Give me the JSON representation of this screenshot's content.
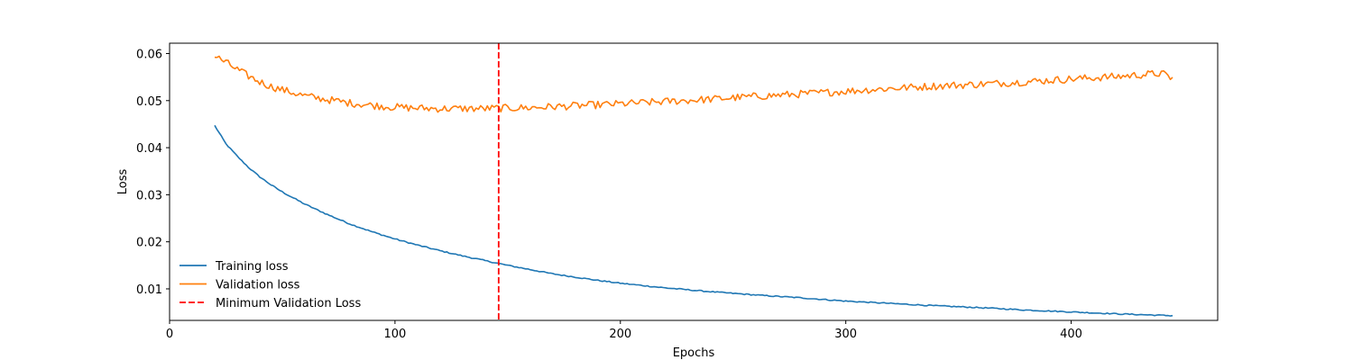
{
  "chart_data": {
    "type": "line",
    "xlabel": "Epochs",
    "ylabel": "Loss",
    "xlim": [
      0,
      465
    ],
    "ylim": [
      0.0033,
      0.0622
    ],
    "xticks": [
      0,
      100,
      200,
      300,
      400
    ],
    "yticks": [
      0.01,
      0.02,
      0.03,
      0.04,
      0.05,
      0.06
    ],
    "xtick_labels": [
      "0",
      "100",
      "200",
      "300",
      "400"
    ],
    "ytick_labels": [
      "0.01",
      "0.02",
      "0.03",
      "0.04",
      "0.05",
      "0.06"
    ],
    "grid": false,
    "legend_position": "lower-left",
    "x_range": [
      20,
      445
    ],
    "series": [
      {
        "name": "Training loss",
        "color": "#1f77b4",
        "style": "solid",
        "x": [
          20,
          25,
          30,
          35,
          40,
          45,
          50,
          55,
          60,
          70,
          80,
          90,
          100,
          110,
          120,
          130,
          140,
          146,
          150,
          160,
          170,
          180,
          190,
          200,
          220,
          240,
          260,
          280,
          300,
          320,
          340,
          360,
          380,
          400,
          420,
          445
        ],
        "y": [
          0.0447,
          0.0408,
          0.0382,
          0.0358,
          0.0338,
          0.0321,
          0.0306,
          0.0293,
          0.028,
          0.0258,
          0.0238,
          0.0221,
          0.0206,
          0.0193,
          0.0181,
          0.017,
          0.016,
          0.0154,
          0.015,
          0.0141,
          0.0132,
          0.0125,
          0.0118,
          0.0112,
          0.0102,
          0.0094,
          0.0087,
          0.0081,
          0.0074,
          0.0069,
          0.0064,
          0.006,
          0.0055,
          0.0051,
          0.0047,
          0.0043
        ]
      },
      {
        "name": "Validation loss",
        "color": "#ff7f0e",
        "style": "solid",
        "x": [
          20,
          25,
          30,
          35,
          40,
          45,
          50,
          60,
          70,
          80,
          90,
          100,
          110,
          120,
          130,
          140,
          146,
          150,
          160,
          170,
          180,
          190,
          200,
          220,
          240,
          260,
          280,
          300,
          320,
          340,
          360,
          380,
          400,
          420,
          440,
          445
        ],
        "y": [
          0.0595,
          0.0581,
          0.0566,
          0.0552,
          0.054,
          0.053,
          0.0523,
          0.051,
          0.0502,
          0.0495,
          0.049,
          0.0486,
          0.0484,
          0.0483,
          0.0483,
          0.0483,
          0.0484,
          0.0484,
          0.0485,
          0.0487,
          0.0489,
          0.0491,
          0.0493,
          0.0498,
          0.0503,
          0.0509,
          0.0514,
          0.052,
          0.0526,
          0.0531,
          0.0535,
          0.054,
          0.0546,
          0.0551,
          0.0558,
          0.0547
        ],
        "noise_amplitude": 0.0008
      }
    ],
    "markers": [
      {
        "name": "Minimum Validation Loss",
        "type": "vline",
        "x": 146,
        "color": "#ff0000",
        "style": "dashed"
      }
    ]
  }
}
